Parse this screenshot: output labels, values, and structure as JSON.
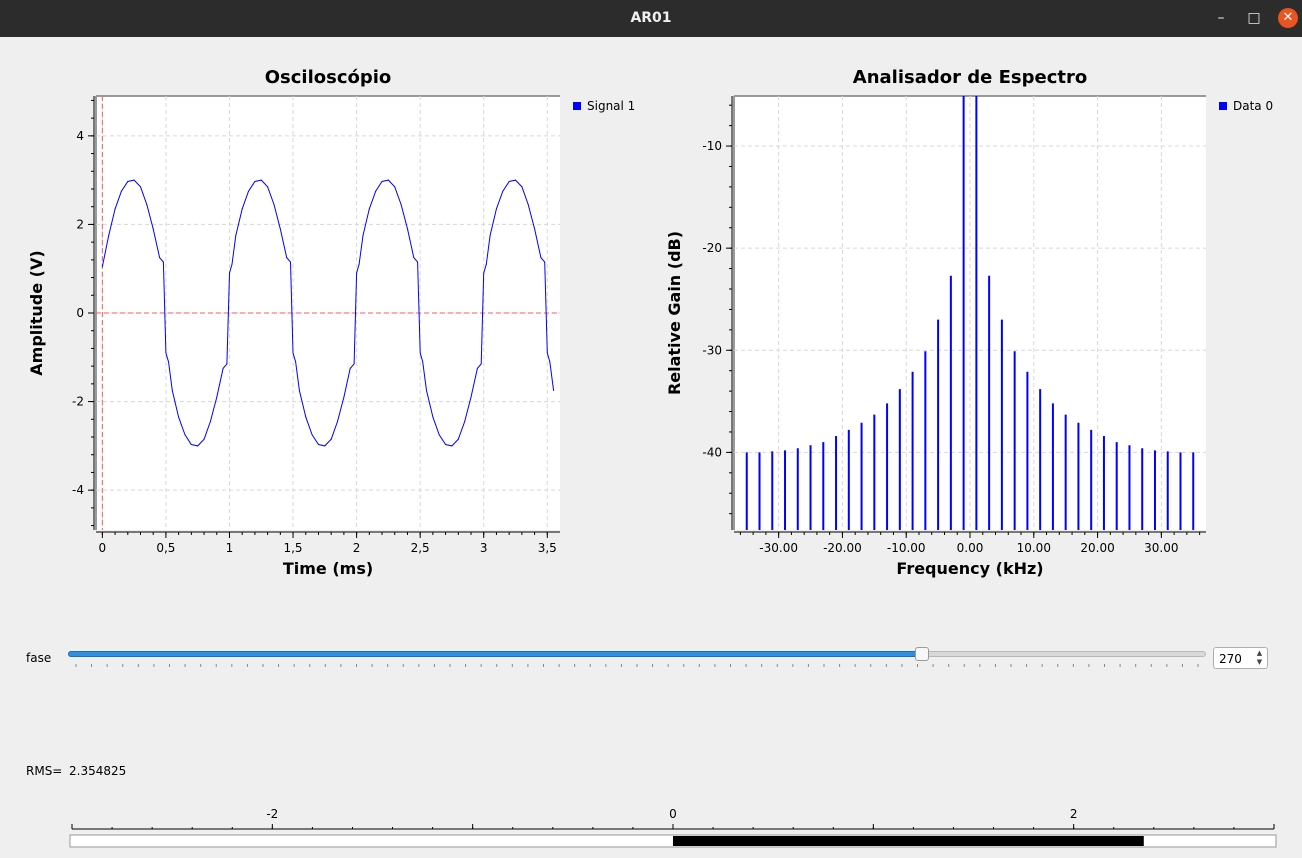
{
  "window": {
    "title": "AR01",
    "minimize_glyph": "–",
    "maximize_glyph": "□",
    "close_glyph": "✕"
  },
  "oscilloscope": {
    "chart_data": {
      "type": "line",
      "title": "Osciloscópio",
      "xlabel": "Time (ms)",
      "ylabel": "Amplitude (V)",
      "xlim": [
        -0.05,
        3.6
      ],
      "ylim": [
        -4.9,
        4.9
      ],
      "x_ticks": [
        0,
        0.5,
        1,
        1.5,
        2,
        2.5,
        3,
        3.5
      ],
      "x_tick_labels": [
        "0",
        "0,5",
        "1",
        "1,5",
        "2",
        "2,5",
        "3",
        "3,5"
      ],
      "y_ticks": [
        -4,
        -2,
        0,
        2,
        4
      ],
      "y_tick_labels": [
        "-4",
        "-2",
        "0",
        "2",
        "4"
      ],
      "legend": "top-right",
      "grid": true,
      "series": [
        {
          "name": "Signal 1",
          "color": "#0000ff",
          "x": [
            0,
            0.05,
            0.1,
            0.15,
            0.2,
            0.25,
            0.3,
            0.35,
            0.4,
            0.45,
            0.48,
            0.5,
            0.52,
            0.55,
            0.6,
            0.65,
            0.7,
            0.75,
            0.8,
            0.85,
            0.9,
            0.95,
            0.98,
            1.0,
            1.02,
            1.05,
            1.1,
            1.15,
            1.2,
            1.25,
            1.3,
            1.35,
            1.4,
            1.45,
            1.48,
            1.5,
            1.52,
            1.55,
            1.6,
            1.65,
            1.7,
            1.75,
            1.8,
            1.85,
            1.9,
            1.95,
            1.98,
            2.0,
            2.02,
            2.05,
            2.1,
            2.15,
            2.2,
            2.25,
            2.3,
            2.35,
            2.4,
            2.45,
            2.48,
            2.5,
            2.52,
            2.55,
            2.6,
            2.65,
            2.7,
            2.75,
            2.8,
            2.85,
            2.9,
            2.95,
            2.98,
            3.0,
            3.02,
            3.05,
            3.1,
            3.15,
            3.2,
            3.25,
            3.3,
            3.35,
            3.4,
            3.45,
            3.48,
            3.5,
            3.52,
            3.55
          ],
          "y": [
            1.05,
            1.75,
            2.35,
            2.75,
            2.97,
            3.0,
            2.85,
            2.45,
            1.9,
            1.25,
            1.15,
            -0.9,
            -1.1,
            -1.75,
            -2.35,
            -2.75,
            -2.97,
            -3.0,
            -2.85,
            -2.45,
            -1.9,
            -1.25,
            -1.15,
            0.9,
            1.1,
            1.75,
            2.35,
            2.75,
            2.97,
            3.0,
            2.85,
            2.45,
            1.9,
            1.25,
            1.15,
            -0.9,
            -1.1,
            -1.75,
            -2.35,
            -2.75,
            -2.97,
            -3.0,
            -2.85,
            -2.45,
            -1.9,
            -1.25,
            -1.15,
            0.9,
            1.1,
            1.75,
            2.35,
            2.75,
            2.97,
            3.0,
            2.85,
            2.45,
            1.9,
            1.25,
            1.15,
            -0.9,
            -1.1,
            -1.75,
            -2.35,
            -2.75,
            -2.97,
            -3.0,
            -2.85,
            -2.45,
            -1.9,
            -1.25,
            -1.15,
            0.9,
            1.1,
            1.75,
            2.35,
            2.75,
            2.97,
            3.0,
            2.85,
            2.45,
            1.9,
            1.25,
            1.15,
            -0.9,
            -1.1,
            -1.75
          ]
        }
      ],
      "markers": {
        "x": 0,
        "y": 0,
        "color": "#ff5a5a"
      }
    }
  },
  "spectrum": {
    "chart_data": {
      "type": "bar",
      "title": "Analisador de Espectro",
      "xlabel": "Frequency (kHz)",
      "ylabel": "Relative Gain (dB)",
      "xlim": [
        -37,
        37
      ],
      "ylim": [
        -47.6,
        -5.1
      ],
      "x_ticks": [
        -30,
        -20,
        -10,
        0,
        10,
        20,
        30
      ],
      "x_tick_labels": [
        "-30.00",
        "-20.00",
        "-10.00",
        "0.00",
        "10.00",
        "20.00",
        "30.00"
      ],
      "y_ticks": [
        -40,
        -30,
        -20,
        -10
      ],
      "y_tick_labels": [
        "-40",
        "-30",
        "-20",
        "-10"
      ],
      "legend": "top-right",
      "grid": true,
      "baseline": -47.6,
      "series": [
        {
          "name": "Data 0",
          "color": "#0000ff",
          "x": [
            -35,
            -33,
            -31,
            -29,
            -27,
            -25,
            -23,
            -21,
            -19,
            -17,
            -15,
            -13,
            -11,
            -9,
            -7,
            -5,
            -3,
            -1,
            1,
            3,
            5,
            7,
            9,
            11,
            13,
            15,
            17,
            19,
            21,
            23,
            25,
            27,
            29,
            31,
            33,
            35
          ],
          "values": [
            -40.0,
            -40.0,
            -39.9,
            -39.8,
            -39.6,
            -39.3,
            -39.0,
            -38.4,
            -37.8,
            -37.1,
            -36.3,
            -35.2,
            -33.8,
            -32.1,
            -30.1,
            -27.0,
            -22.7,
            -5.1,
            -5.1,
            -22.7,
            -27.0,
            -30.1,
            -32.1,
            -33.8,
            -35.2,
            -36.3,
            -37.1,
            -37.8,
            -38.4,
            -39.0,
            -39.3,
            -39.6,
            -39.8,
            -39.9,
            -40.0,
            -40.0
          ]
        }
      ]
    }
  },
  "controls": {
    "fase_label": "fase",
    "fase_value": "270",
    "fase_fraction": 0.75,
    "spin_up": "▲",
    "spin_down": "▼",
    "rms_label": "RMS=",
    "rms_value": "2.354825"
  },
  "thermometer": {
    "min": -3,
    "max": 3,
    "value_start": 0,
    "value_end": 2.35,
    "ticks": [
      -2,
      0,
      2
    ],
    "tick_labels": [
      "-2",
      "0",
      "2"
    ]
  }
}
